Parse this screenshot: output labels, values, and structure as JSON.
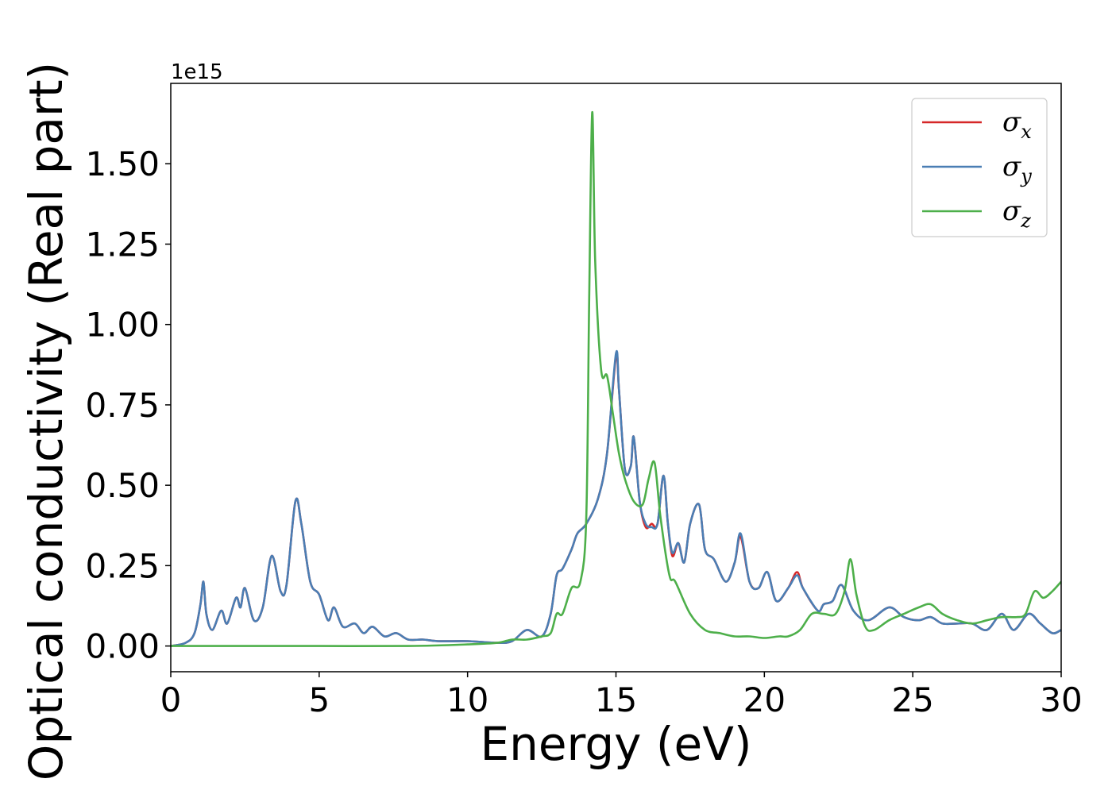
{
  "chart_data": {
    "type": "line",
    "xlabel": "Energy (eV)",
    "ylabel": "Optical conductivity (Real part)",
    "y_offset_label": "1e15",
    "xlim": [
      0,
      30
    ],
    "ylim": [
      -0.08,
      1.75
    ],
    "x_ticks": [
      0,
      5,
      10,
      15,
      20,
      25,
      30
    ],
    "x_tick_labels": [
      "0",
      "5",
      "10",
      "15",
      "20",
      "25",
      "30"
    ],
    "y_ticks": [
      0.0,
      0.25,
      0.5,
      0.75,
      1.0,
      1.25,
      1.5
    ],
    "y_tick_labels": [
      "0.00",
      "0.25",
      "0.50",
      "0.75",
      "1.00",
      "1.25",
      "1.50"
    ],
    "grid": false,
    "legend_position": "top-right",
    "series": [
      {
        "name": "σx",
        "symbol": "σ",
        "subscript": "x",
        "color": "#d62728",
        "x": [
          0,
          0.5,
          0.8,
          1.0,
          1.1,
          1.2,
          1.4,
          1.7,
          1.9,
          2.2,
          2.35,
          2.5,
          2.8,
          3.1,
          3.4,
          3.7,
          3.9,
          4.2,
          4.4,
          4.7,
          5.0,
          5.3,
          5.5,
          5.8,
          6.2,
          6.5,
          6.8,
          7.2,
          7.6,
          8.0,
          8.5,
          9.0,
          10.0,
          11.0,
          11.5,
          12.0,
          12.5,
          12.8,
          13.0,
          13.2,
          13.5,
          13.7,
          14.0,
          14.4,
          14.7,
          15.0,
          15.1,
          15.3,
          15.5,
          15.6,
          15.8,
          16.0,
          16.2,
          16.4,
          16.6,
          16.75,
          16.9,
          17.1,
          17.3,
          17.5,
          17.8,
          18.0,
          18.3,
          18.7,
          19.0,
          19.2,
          19.5,
          19.8,
          20.1,
          20.4,
          20.8,
          21.1,
          21.3,
          21.8,
          22.0,
          22.3,
          22.6,
          23.0,
          23.5,
          24.2,
          24.7,
          25.2,
          25.6,
          26.0,
          26.5,
          27.0,
          27.5,
          28.0,
          28.4,
          28.9,
          29.3,
          29.7,
          30.0
        ],
        "y": [
          0,
          0.01,
          0.04,
          0.13,
          0.2,
          0.1,
          0.05,
          0.11,
          0.07,
          0.15,
          0.12,
          0.18,
          0.08,
          0.12,
          0.28,
          0.17,
          0.19,
          0.45,
          0.38,
          0.2,
          0.16,
          0.08,
          0.12,
          0.06,
          0.07,
          0.04,
          0.06,
          0.03,
          0.04,
          0.02,
          0.02,
          0.015,
          0.015,
          0.01,
          0.015,
          0.05,
          0.03,
          0.1,
          0.22,
          0.24,
          0.3,
          0.35,
          0.38,
          0.46,
          0.6,
          0.9,
          0.8,
          0.55,
          0.56,
          0.65,
          0.45,
          0.37,
          0.38,
          0.38,
          0.53,
          0.38,
          0.28,
          0.32,
          0.26,
          0.38,
          0.44,
          0.3,
          0.27,
          0.2,
          0.26,
          0.34,
          0.2,
          0.18,
          0.23,
          0.14,
          0.18,
          0.23,
          0.18,
          0.11,
          0.13,
          0.14,
          0.19,
          0.11,
          0.08,
          0.12,
          0.09,
          0.08,
          0.09,
          0.07,
          0.07,
          0.07,
          0.05,
          0.1,
          0.05,
          0.1,
          0.07,
          0.04,
          0.05
        ]
      },
      {
        "name": "σy",
        "symbol": "σ",
        "subscript": "y",
        "color": "#4a7eb4",
        "x": [
          0,
          0.5,
          0.8,
          1.0,
          1.1,
          1.2,
          1.4,
          1.7,
          1.9,
          2.2,
          2.35,
          2.5,
          2.8,
          3.1,
          3.4,
          3.7,
          3.9,
          4.2,
          4.4,
          4.7,
          5.0,
          5.3,
          5.5,
          5.8,
          6.2,
          6.5,
          6.8,
          7.2,
          7.6,
          8.0,
          8.5,
          9.0,
          10.0,
          11.0,
          11.5,
          12.0,
          12.5,
          12.8,
          13.0,
          13.2,
          13.5,
          13.7,
          14.0,
          14.4,
          14.7,
          15.0,
          15.1,
          15.3,
          15.5,
          15.6,
          15.8,
          16.0,
          16.2,
          16.4,
          16.6,
          16.75,
          16.9,
          17.1,
          17.3,
          17.5,
          17.8,
          18.0,
          18.3,
          18.7,
          19.0,
          19.2,
          19.5,
          19.8,
          20.1,
          20.4,
          20.8,
          21.1,
          21.3,
          21.8,
          22.0,
          22.3,
          22.6,
          23.0,
          23.5,
          24.2,
          24.7,
          25.2,
          25.6,
          26.0,
          26.5,
          27.0,
          27.5,
          28.0,
          28.4,
          28.9,
          29.3,
          29.7,
          30.0
        ],
        "y": [
          0,
          0.01,
          0.04,
          0.13,
          0.2,
          0.1,
          0.05,
          0.11,
          0.07,
          0.15,
          0.12,
          0.18,
          0.08,
          0.12,
          0.28,
          0.17,
          0.19,
          0.45,
          0.38,
          0.2,
          0.16,
          0.08,
          0.12,
          0.06,
          0.07,
          0.04,
          0.06,
          0.03,
          0.04,
          0.02,
          0.02,
          0.015,
          0.015,
          0.01,
          0.015,
          0.05,
          0.03,
          0.1,
          0.22,
          0.24,
          0.3,
          0.35,
          0.38,
          0.46,
          0.6,
          0.91,
          0.8,
          0.55,
          0.56,
          0.65,
          0.45,
          0.38,
          0.37,
          0.38,
          0.53,
          0.38,
          0.29,
          0.32,
          0.26,
          0.38,
          0.44,
          0.3,
          0.27,
          0.2,
          0.26,
          0.35,
          0.2,
          0.18,
          0.23,
          0.14,
          0.18,
          0.22,
          0.18,
          0.11,
          0.13,
          0.14,
          0.19,
          0.11,
          0.08,
          0.12,
          0.09,
          0.08,
          0.09,
          0.07,
          0.07,
          0.07,
          0.05,
          0.1,
          0.05,
          0.1,
          0.07,
          0.04,
          0.05
        ]
      },
      {
        "name": "σz",
        "symbol": "σ",
        "subscript": "z",
        "color": "#4daf4a",
        "x": [
          0,
          2,
          5,
          8,
          10,
          11,
          11.5,
          12,
          12.5,
          12.8,
          13,
          13.2,
          13.5,
          13.8,
          14.0,
          14.1,
          14.2,
          14.3,
          14.5,
          14.7,
          14.9,
          15.1,
          15.3,
          15.6,
          15.9,
          16.1,
          16.3,
          16.5,
          16.8,
          17.0,
          17.5,
          18,
          18.5,
          19,
          19.5,
          20,
          20.5,
          20.8,
          21.2,
          21.6,
          22.0,
          22.4,
          22.7,
          22.9,
          23.1,
          23.4,
          23.7,
          24.2,
          24.7,
          25.2,
          25.6,
          26.0,
          26.5,
          27.0,
          27.5,
          28.0,
          28.5,
          28.8,
          29.1,
          29.4,
          29.7,
          30.0
        ],
        "y": [
          0,
          0,
          0,
          0,
          0.005,
          0.01,
          0.02,
          0.02,
          0.03,
          0.04,
          0.1,
          0.1,
          0.18,
          0.2,
          0.4,
          1.1,
          1.66,
          1.2,
          0.86,
          0.84,
          0.72,
          0.6,
          0.52,
          0.45,
          0.44,
          0.52,
          0.57,
          0.4,
          0.22,
          0.2,
          0.1,
          0.05,
          0.04,
          0.03,
          0.03,
          0.025,
          0.03,
          0.03,
          0.05,
          0.1,
          0.1,
          0.1,
          0.17,
          0.27,
          0.16,
          0.06,
          0.05,
          0.08,
          0.1,
          0.12,
          0.13,
          0.1,
          0.08,
          0.07,
          0.08,
          0.09,
          0.09,
          0.1,
          0.17,
          0.15,
          0.17,
          0.2
        ]
      }
    ]
  }
}
